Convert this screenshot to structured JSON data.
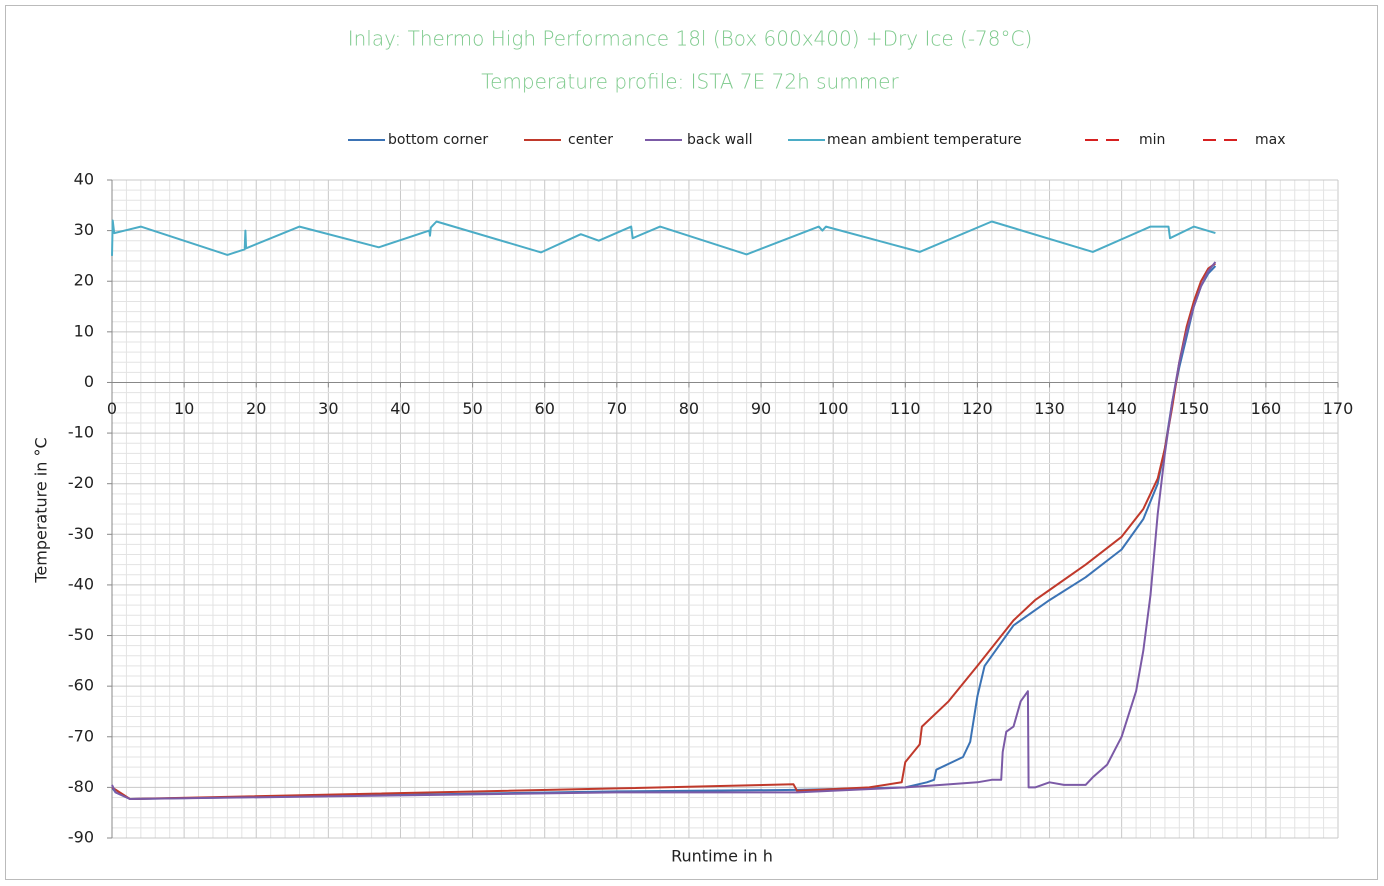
{
  "chart_data": {
    "type": "line",
    "title": "Inlay: Thermo High Performance 18l (Box 600x400) +Dry Ice (-78°C)",
    "subtitle": "Temperature profile: ISTA 7E 72h summer",
    "x_label": "Runtime in h",
    "y_label": "Temperature in  °C",
    "xlim": [
      0,
      170
    ],
    "xticks": [
      0,
      10,
      20,
      30,
      40,
      50,
      60,
      70,
      80,
      90,
      100,
      110,
      120,
      130,
      140,
      150,
      160,
      170
    ],
    "ylim": [
      -90,
      40
    ],
    "yticks": [
      -90,
      -80,
      -70,
      -60,
      -50,
      -40,
      -30,
      -20,
      -10,
      0,
      10,
      20,
      30,
      40
    ],
    "grid": true,
    "minor_divisions": 5,
    "legend": "top",
    "series": [
      {
        "name": "bottom corner",
        "color": "#3b73b5",
        "x": [
          0,
          0.5,
          2.5,
          70,
          95,
          110,
          113,
          114,
          114.3,
          118,
          119,
          120,
          121,
          125,
          130,
          135,
          140,
          143,
          145,
          146,
          147,
          148,
          149,
          150,
          151,
          152,
          153
        ],
        "values": [
          -80,
          -81,
          -82.3,
          -80.8,
          -80.5,
          -80,
          -79,
          -78.5,
          -76.5,
          -74,
          -71,
          -62,
          -56,
          -48,
          -43,
          -38.5,
          -33,
          -27,
          -20,
          -13,
          -4,
          3,
          9,
          15,
          19,
          21.5,
          23
        ]
      },
      {
        "name": "center",
        "color": "#c0392b",
        "x": [
          0,
          2.5,
          70,
          94.5,
          95,
          105,
          109.5,
          110,
          112,
          112.3,
          116,
          120,
          125,
          128,
          130,
          135,
          140,
          143,
          145,
          146,
          147,
          148,
          149,
          150,
          151,
          152,
          153
        ],
        "values": [
          -80,
          -82.3,
          -80.2,
          -79.4,
          -80.7,
          -80,
          -79,
          -75,
          -71.5,
          -68,
          -63,
          -56,
          -47,
          -43,
          -41,
          -36,
          -30.5,
          -25,
          -19,
          -13,
          -5,
          4,
          11,
          16,
          20,
          22.5,
          23.5
        ]
      },
      {
        "name": "back wall",
        "color": "#7b5aa6",
        "x": [
          0,
          0.5,
          2.5,
          70,
          95,
          110,
          115,
          120,
          122,
          123.3,
          123.5,
          124,
          125,
          126,
          127,
          127.1,
          128,
          130,
          132,
          135,
          136,
          138,
          140,
          142,
          143,
          144,
          145,
          146,
          147,
          148,
          149,
          150,
          151,
          152,
          153
        ],
        "values": [
          -79.5,
          -81,
          -82.3,
          -81,
          -81,
          -80,
          -79.5,
          -79,
          -78.5,
          -78.5,
          -73,
          -69,
          -68,
          -63,
          -61,
          -80,
          -80,
          -79,
          -79.5,
          -79.5,
          -78,
          -75.5,
          -70,
          -61,
          -53,
          -42,
          -26,
          -14,
          -4,
          4,
          10,
          15,
          19,
          22,
          23.8
        ]
      },
      {
        "name": "mean ambient temperature",
        "color": "#4bacc6",
        "x": [
          0,
          0.1,
          0.3,
          4,
          16,
          18.4,
          18.5,
          18.6,
          26,
          37,
          44,
          44.1,
          44.2,
          45,
          59.5,
          65,
          67.5,
          72,
          72.2,
          76,
          88,
          98,
          98.5,
          99,
          112,
          122,
          136,
          144,
          146.5,
          146.7,
          150,
          153
        ],
        "values": [
          25,
          32,
          29.5,
          30.8,
          25.2,
          26.3,
          30,
          26.5,
          30.8,
          26.7,
          30,
          29,
          30.6,
          31.8,
          25.7,
          29.3,
          28,
          30.8,
          28.5,
          30.8,
          25.3,
          30.8,
          30,
          30.8,
          25.8,
          31.8,
          25.8,
          30.8,
          30.8,
          28.5,
          30.8,
          29.5
        ]
      },
      {
        "name": "min",
        "color": "#d62020",
        "dashed": true,
        "x": [],
        "values": []
      },
      {
        "name": "max",
        "color": "#d62020",
        "dashed": true,
        "x": [],
        "values": []
      }
    ]
  }
}
